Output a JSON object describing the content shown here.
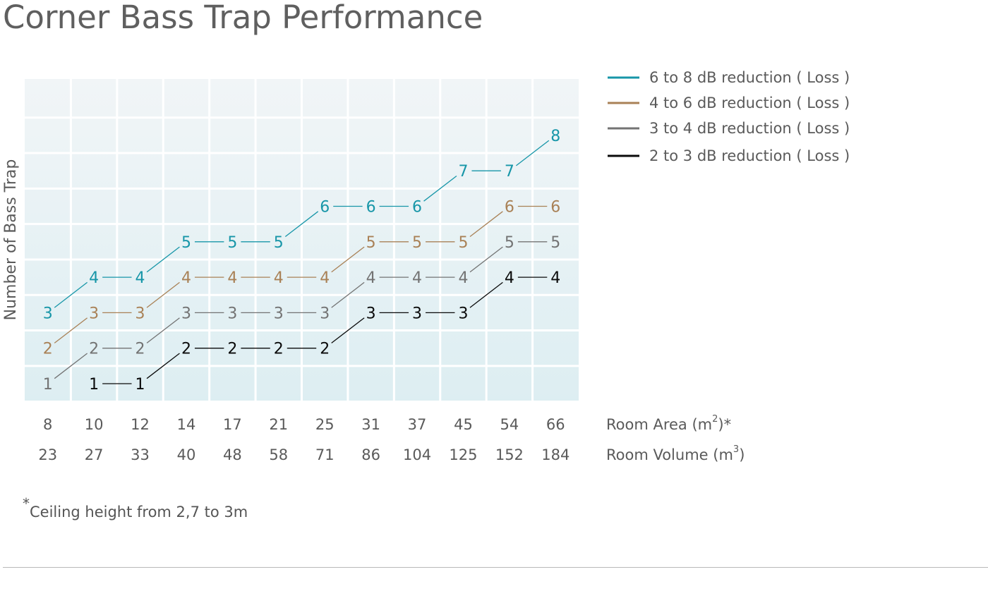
{
  "title": "Corner Bass Trap Performance",
  "chart_data": {
    "type": "line",
    "title": "Corner Bass Trap Performance",
    "ylabel": "Number of Bass Trap",
    "xlabel": "Room Area (m²)*",
    "xlabel_rows": [
      {
        "label_base": "Room Area (m",
        "label_sup": "2",
        "label_tail": ")*",
        "values": [
          "8",
          "10",
          "12",
          "14",
          "17",
          "21",
          "25",
          "31",
          "37",
          "45",
          "54",
          "66"
        ]
      },
      {
        "label_base": "Room Volume (m",
        "label_sup": "3",
        "label_tail": ")",
        "values": [
          "23",
          "27",
          "33",
          "40",
          "48",
          "58",
          "71",
          "86",
          "104",
          "125",
          "152",
          "184"
        ]
      }
    ],
    "ylim": [
      0,
      9
    ],
    "grid": true,
    "grid_color": "#ffffff",
    "plot_gradient": [
      "#f1f5f7",
      "#ddeef2"
    ],
    "legend_position": "right",
    "series": [
      {
        "name": "6 to 8 dB reduction ( Loss )",
        "color": "#1796a8",
        "values": [
          3,
          4,
          4,
          5,
          5,
          5,
          6,
          6,
          6,
          7,
          7,
          8
        ]
      },
      {
        "name": "4 to 6 dB reduction ( Loss )",
        "color": "#a98156",
        "values": [
          2,
          3,
          3,
          4,
          4,
          4,
          4,
          5,
          5,
          5,
          6,
          6
        ]
      },
      {
        "name": "3 to 4 dB reduction ( Loss )",
        "color": "#737373",
        "values": [
          1,
          2,
          2,
          3,
          3,
          3,
          3,
          4,
          4,
          4,
          5,
          5
        ]
      },
      {
        "name": "2 to 3 dB reduction ( Loss )",
        "color": "#0a0a0a",
        "values": [
          null,
          1,
          1,
          2,
          2,
          2,
          2,
          3,
          3,
          3,
          4,
          4
        ]
      }
    ]
  },
  "footnote": {
    "star": "*",
    "text": "Ceiling height from 2,7 to 3m"
  }
}
